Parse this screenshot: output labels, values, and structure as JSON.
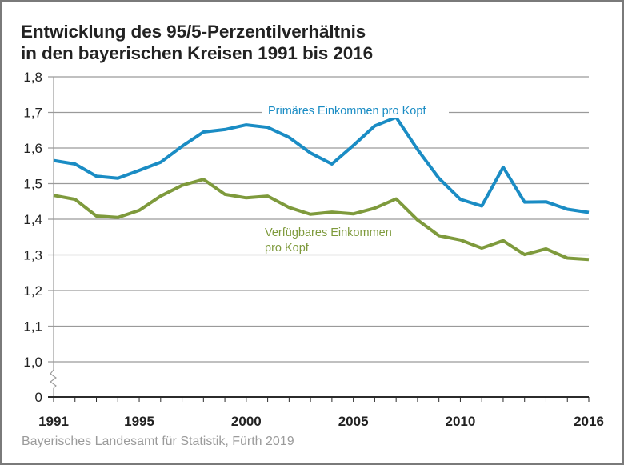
{
  "title_lines": [
    "Entwicklung des 95/5-Perzentilverhältnis",
    "in den bayerischen Kreisen 1991 bis 2016"
  ],
  "source": "Bayerisches Landesamt für Statistik, Fürth 2019",
  "colors": {
    "primary": "#1a8cc4",
    "disposable": "#7e9a3c",
    "grid": "#9a9a9a",
    "axis": "#2b2b2b"
  },
  "chart_data": {
    "type": "line",
    "title": "Entwicklung des 95/5-Perzentilverhältnis in den bayerischen Kreisen 1991 bis 2016",
    "xlabel": "",
    "ylabel": "",
    "x": [
      1991,
      1992,
      1993,
      1994,
      1995,
      1996,
      1997,
      1998,
      1999,
      2000,
      2001,
      2002,
      2003,
      2004,
      2005,
      2006,
      2007,
      2008,
      2009,
      2010,
      2011,
      2012,
      2013,
      2014,
      2015,
      2016
    ],
    "xticks": [
      "1991",
      "1995",
      "2000",
      "2005",
      "2010",
      "2016"
    ],
    "yticks": [
      "0",
      "1,0",
      "1,1",
      "1,2",
      "1,3",
      "1,4",
      "1,5",
      "1,6",
      "1,7",
      "1,8"
    ],
    "ylim": [
      1.0,
      1.8
    ],
    "y_axis_break": "between 0 and 1,0",
    "grid": true,
    "series": [
      {
        "name": "Primäres Einkommen pro Kopf",
        "values": [
          1.565,
          1.555,
          1.521,
          1.515,
          1.537,
          1.56,
          1.605,
          1.645,
          1.652,
          1.665,
          1.658,
          1.63,
          1.586,
          1.555,
          1.607,
          1.662,
          1.686,
          1.596,
          1.515,
          1.456,
          1.437,
          1.546,
          1.448,
          1.449,
          1.428,
          1.419
        ]
      },
      {
        "name": "Verfügbares Einkommen pro Kopf",
        "label_lines": [
          "Verfügbares Einkommen",
          "pro Kopf"
        ],
        "values": [
          1.467,
          1.456,
          1.409,
          1.405,
          1.425,
          1.465,
          1.495,
          1.512,
          1.47,
          1.46,
          1.465,
          1.433,
          1.414,
          1.42,
          1.415,
          1.431,
          1.457,
          1.398,
          1.354,
          1.342,
          1.319,
          1.34,
          1.301,
          1.317,
          1.291,
          1.287
        ]
      }
    ]
  }
}
